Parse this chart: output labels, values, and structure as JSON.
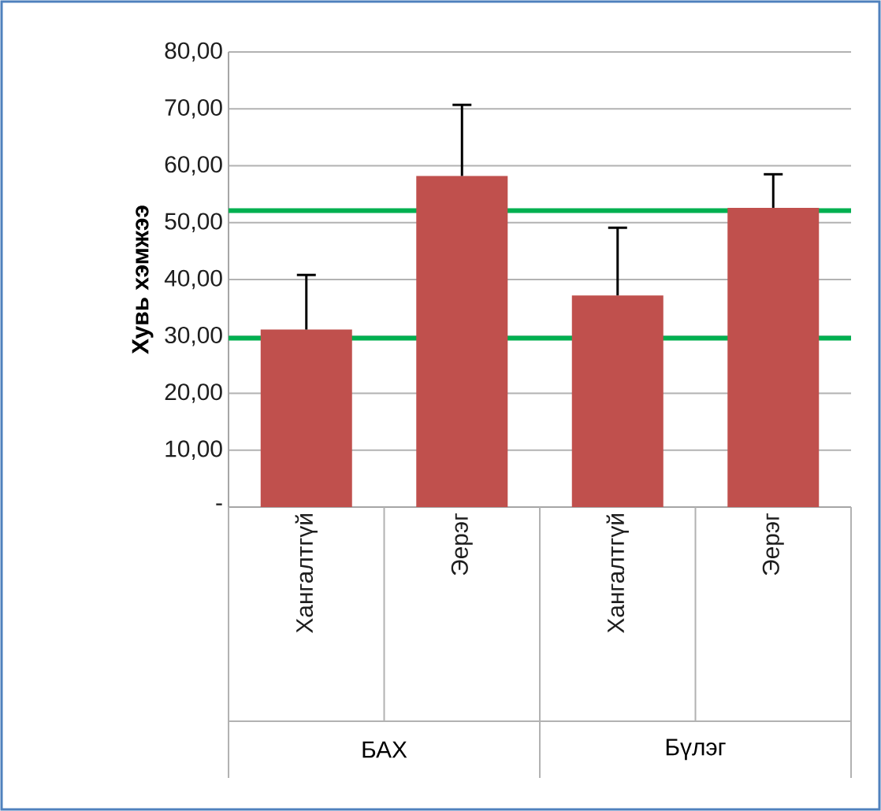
{
  "chart_data": {
    "type": "bar",
    "ylabel": "Хувь хэмжээ",
    "categories": [
      "Хангалтгүй",
      "Эерэг",
      "Хангалтгүй",
      "Эерэг"
    ],
    "values": [
      31.2,
      58.2,
      37.2,
      52.6
    ],
    "color": "#c0504d",
    "errors": [
      [
        31.2,
        40.8
      ],
      [
        58.2,
        70.7
      ],
      [
        37.2,
        49.1
      ],
      [
        52.6,
        58.5
      ]
    ],
    "ylim": [
      0,
      80
    ],
    "yticks": [
      {
        "value": 0,
        "label": "-"
      },
      {
        "value": 10,
        "label": "10,00"
      },
      {
        "value": 20,
        "label": "20,00"
      },
      {
        "value": 30,
        "label": "30,00"
      },
      {
        "value": 40,
        "label": "40,00"
      },
      {
        "value": 50,
        "label": "50,00"
      },
      {
        "value": 60,
        "label": "60,00"
      },
      {
        "value": 70,
        "label": "70,00"
      },
      {
        "value": 80,
        "label": "80,00"
      }
    ],
    "grid": "y",
    "ref_lines": [
      {
        "axis": "y",
        "value": 29.7,
        "color": "#00b050"
      },
      {
        "axis": "y",
        "value": 52.1,
        "color": "#00b050"
      }
    ],
    "annotations": [
      "БАХ",
      "Бүлэг"
    ]
  }
}
